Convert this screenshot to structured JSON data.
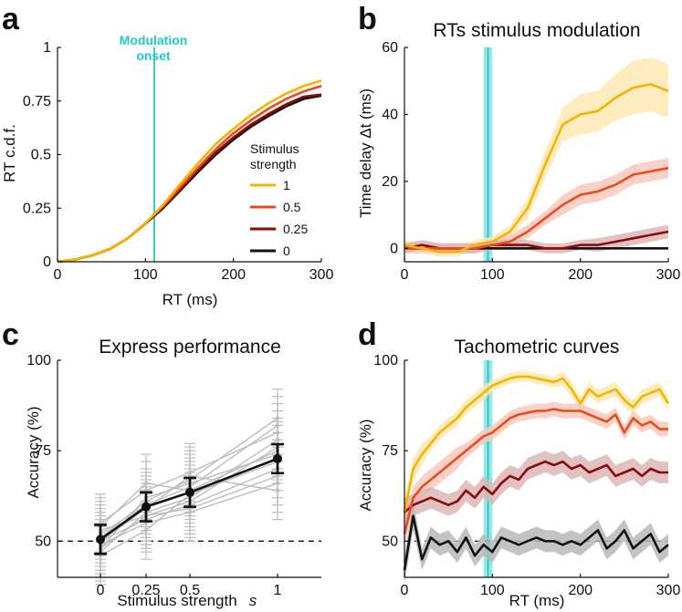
{
  "colors": {
    "s1": "#F5B400",
    "s05": "#EB4A1E",
    "s025": "#8B0A0A",
    "s0": "#111111",
    "onset": "#1FC8C8",
    "gray": "#bdbdbd"
  },
  "chart_data": [
    {
      "panel": "a",
      "type": "line",
      "title": "",
      "xlabel": "RT (ms)",
      "ylabel": "RT c.d.f.",
      "xlim": [
        0,
        300
      ],
      "ylim": [
        0,
        1
      ],
      "xticks": [
        "0",
        "100",
        "200",
        "300"
      ],
      "yticks": [
        "0",
        "0.25",
        "0.5",
        "0.75",
        "1"
      ],
      "onset_label": [
        "Modulation",
        "onset"
      ],
      "onset_x": 110,
      "legend_title": [
        "Stimulus",
        "strength"
      ],
      "x": [
        0,
        20,
        40,
        60,
        80,
        100,
        120,
        140,
        160,
        180,
        200,
        220,
        240,
        260,
        280,
        300
      ],
      "series": [
        {
          "name": "1",
          "color": "#F5B400",
          "values": [
            0,
            0.01,
            0.03,
            0.06,
            0.11,
            0.18,
            0.265,
            0.365,
            0.46,
            0.55,
            0.62,
            0.685,
            0.74,
            0.785,
            0.82,
            0.845
          ]
        },
        {
          "name": "0.5",
          "color": "#EB4A1E",
          "values": [
            0,
            0.01,
            0.03,
            0.06,
            0.11,
            0.18,
            0.26,
            0.35,
            0.44,
            0.525,
            0.6,
            0.66,
            0.715,
            0.76,
            0.795,
            0.82
          ]
        },
        {
          "name": "0.25",
          "color": "#8B0A0A",
          "values": [
            0,
            0.01,
            0.03,
            0.06,
            0.11,
            0.18,
            0.255,
            0.34,
            0.43,
            0.51,
            0.58,
            0.64,
            0.69,
            0.735,
            0.77,
            0.78
          ]
        },
        {
          "name": "0",
          "color": "#111111",
          "values": [
            0,
            0.01,
            0.03,
            0.06,
            0.11,
            0.178,
            0.25,
            0.335,
            0.42,
            0.5,
            0.57,
            0.63,
            0.68,
            0.725,
            0.76,
            0.775
          ]
        }
      ]
    },
    {
      "panel": "b",
      "type": "line",
      "title": "RTs stimulus modulation",
      "xlabel": "",
      "ylabel": "Time delay Δt (ms)",
      "xlim": [
        0,
        300
      ],
      "ylim": [
        -4,
        60
      ],
      "xticks": [
        "0",
        "100",
        "200",
        "300"
      ],
      "yticks": [
        "0",
        "20",
        "40",
        "60"
      ],
      "onset_x": 95,
      "onset_band": [
        90,
        100
      ],
      "x": [
        0,
        20,
        40,
        60,
        80,
        100,
        120,
        140,
        160,
        180,
        200,
        220,
        240,
        260,
        280,
        300
      ],
      "series": [
        {
          "name": "1",
          "color": "#F5B400",
          "values": [
            1,
            0,
            -1,
            -1,
            1,
            2,
            5,
            12,
            25,
            37,
            40,
            41,
            45,
            48,
            49,
            47
          ],
          "errors": [
            1.5,
            1.5,
            1.5,
            1.5,
            1.5,
            1.5,
            2,
            3,
            4,
            5,
            6,
            6,
            7,
            8,
            8,
            8
          ]
        },
        {
          "name": "0.5",
          "color": "#EB4A1E",
          "values": [
            0,
            0,
            0,
            0,
            0,
            1,
            2,
            5,
            9,
            13,
            16,
            17,
            19,
            22,
            23,
            24
          ],
          "errors": [
            1.5,
            1.5,
            1.5,
            1.5,
            1.5,
            1.5,
            2,
            2,
            2,
            3,
            3,
            3,
            3,
            3,
            3,
            3
          ]
        },
        {
          "name": "0.25",
          "color": "#8B0A0A",
          "values": [
            0,
            1,
            0,
            0,
            0,
            1,
            1,
            1,
            0,
            0,
            1,
            1,
            2,
            3,
            4,
            5
          ],
          "errors": [
            1.5,
            1.5,
            1.5,
            1.5,
            1.5,
            1.5,
            1.5,
            1.5,
            1.5,
            1.5,
            1.5,
            2,
            2,
            2,
            2,
            2
          ]
        },
        {
          "name": "0",
          "color": "#111111",
          "values": [
            0,
            0,
            0,
            0,
            0,
            0,
            0,
            0,
            0,
            0,
            0,
            0,
            0,
            0,
            0,
            0
          ]
        }
      ]
    },
    {
      "panel": "c",
      "type": "line",
      "title": "Express performance",
      "xlabel": "Stimulus strength",
      "xlabel_symbol": "s",
      "ylabel": "Accuracy (%)",
      "ylim": [
        40,
        100
      ],
      "yticks": [
        "50",
        "75",
        "100"
      ],
      "categories": [
        "0",
        "0.25",
        "0.5",
        "1"
      ],
      "chance": 50,
      "mean": {
        "values": [
          50.5,
          59.5,
          63.5,
          72.8
        ],
        "errors": [
          4,
          4,
          4,
          4
        ]
      },
      "subjects": [
        {
          "values": [
            47,
            58,
            62,
            78
          ],
          "errors": [
            8,
            8,
            8,
            8
          ]
        },
        {
          "values": [
            52,
            60,
            65,
            82
          ],
          "errors": [
            8,
            8,
            8,
            8
          ]
        },
        {
          "values": [
            50,
            56,
            60,
            70
          ],
          "errors": [
            8,
            8,
            8,
            8
          ]
        },
        {
          "values": [
            48,
            62,
            66,
            74
          ],
          "errors": [
            8,
            8,
            8,
            8
          ]
        },
        {
          "values": [
            53,
            57,
            59,
            68
          ],
          "errors": [
            8,
            8,
            8,
            8
          ]
        },
        {
          "values": [
            55,
            64,
            69,
            80
          ],
          "errors": [
            8,
            8,
            8,
            8
          ]
        },
        {
          "values": [
            49,
            55,
            58,
            66
          ],
          "errors": [
            8,
            8,
            8,
            8
          ]
        },
        {
          "values": [
            51,
            61,
            67,
            84
          ],
          "errors": [
            8,
            8,
            8,
            8
          ]
        },
        {
          "values": [
            46,
            53,
            63,
            72
          ],
          "errors": [
            8,
            8,
            8,
            8
          ]
        },
        {
          "values": [
            54,
            66,
            64,
            75
          ],
          "errors": [
            8,
            8,
            8,
            8
          ]
        },
        {
          "values": [
            50,
            59,
            68,
            64
          ],
          "errors": [
            8,
            8,
            8,
            8
          ]
        },
        {
          "values": [
            48,
            57,
            61,
            76
          ],
          "errors": [
            8,
            8,
            8,
            8
          ]
        }
      ]
    },
    {
      "panel": "d",
      "type": "line",
      "title": "Tachometric curves",
      "xlabel": "RT (ms)",
      "ylabel": "Accuracy (%)",
      "xlim": [
        0,
        300
      ],
      "ylim": [
        40,
        100
      ],
      "xticks": [
        "0",
        "100",
        "200",
        "300"
      ],
      "yticks": [
        "50",
        "75",
        "100"
      ],
      "chance": 50,
      "onset_x": 95,
      "onset_band": [
        90,
        100
      ],
      "x": [
        0,
        10,
        20,
        30,
        40,
        50,
        60,
        70,
        80,
        90,
        100,
        110,
        120,
        130,
        140,
        150,
        160,
        170,
        180,
        190,
        200,
        210,
        220,
        230,
        240,
        250,
        260,
        270,
        280,
        290,
        300
      ],
      "series": [
        {
          "name": "1",
          "color": "#F5B400",
          "values": [
            58,
            70,
            74,
            77,
            80,
            82,
            84,
            87,
            89,
            91,
            93,
            94,
            95,
            95.5,
            95.5,
            95,
            94.5,
            94,
            95,
            92,
            88,
            92,
            90,
            91,
            92,
            89,
            87,
            90,
            91,
            92,
            88
          ],
          "errors": [
            4,
            3,
            3,
            2,
            2,
            2,
            2,
            2,
            2,
            2,
            1.5,
            1.5,
            1.5,
            1.5,
            1.5,
            1.5,
            1.5,
            1.5,
            2,
            2,
            2,
            2,
            2,
            2,
            2,
            2,
            2,
            2,
            2,
            2,
            2
          ]
        },
        {
          "name": "0.5",
          "color": "#EB4A1E",
          "values": [
            52,
            62,
            65,
            67,
            69,
            71,
            73,
            75,
            77,
            79,
            80,
            82,
            84,
            85,
            85.5,
            86,
            86,
            86.5,
            86,
            86,
            86,
            85,
            84,
            83,
            85,
            80,
            84,
            82,
            83,
            81,
            81
          ],
          "errors": [
            4,
            3,
            3,
            3,
            3,
            3,
            3,
            2,
            2,
            2,
            2,
            2,
            2,
            2,
            2,
            2,
            2,
            2,
            2,
            2,
            2,
            2,
            2,
            2,
            2,
            2,
            2,
            2,
            2,
            2,
            2
          ]
        },
        {
          "name": "0.25",
          "color": "#8B0A0A",
          "values": [
            58,
            60,
            61,
            62,
            61,
            60,
            61,
            64,
            62,
            65,
            63,
            66,
            68,
            67,
            70,
            71,
            72,
            71,
            72,
            70,
            71,
            69,
            70,
            71,
            68,
            69,
            70,
            68,
            70,
            69,
            69
          ],
          "errors": [
            4,
            3,
            3,
            3,
            3,
            3,
            3,
            3,
            3,
            3,
            3,
            3,
            3,
            3,
            3,
            3,
            3,
            3,
            3,
            3,
            3,
            3,
            3,
            3,
            3,
            3,
            3,
            3,
            3,
            3,
            3
          ]
        },
        {
          "name": "0",
          "color": "#111111",
          "values": [
            42,
            57,
            45,
            51,
            49,
            50,
            47,
            51,
            46,
            49,
            47,
            51,
            50,
            49,
            50,
            51,
            50,
            50,
            49,
            50,
            49,
            51,
            53,
            48,
            50,
            53,
            48,
            50,
            52,
            47,
            49
          ],
          "errors": [
            4,
            4,
            3,
            3,
            3,
            3,
            3,
            3,
            3,
            3,
            3,
            3,
            3,
            3,
            3,
            3,
            3,
            3,
            3,
            3,
            3,
            3,
            3,
            3,
            3,
            3,
            3,
            3,
            3,
            3,
            3
          ]
        }
      ]
    }
  ]
}
